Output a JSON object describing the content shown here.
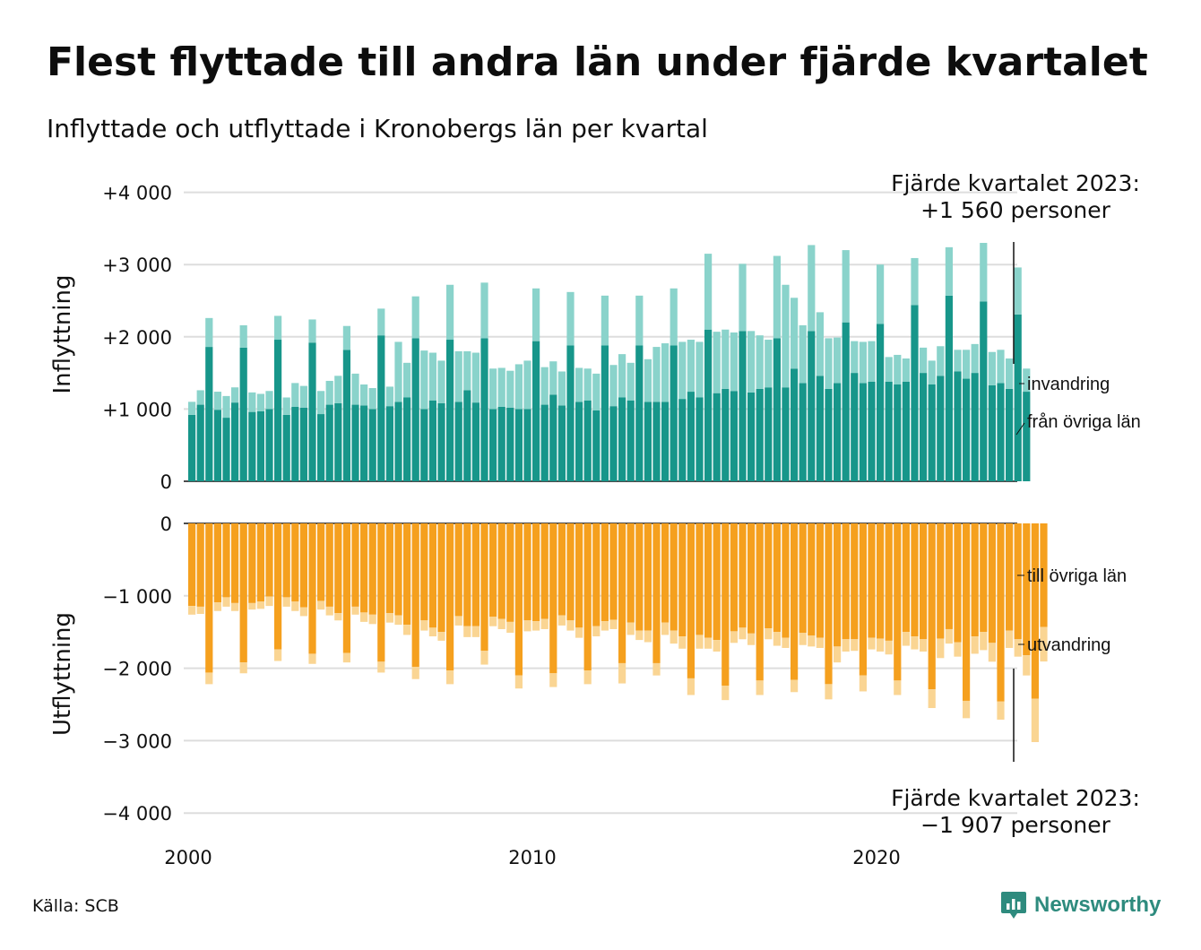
{
  "title": "Flest flyttade till andra län under fjärde kvartalet",
  "subtitle": "Inflyttade och utflyttade i Kronobergs län per kvartal",
  "source": "Källa: SCB",
  "brand": {
    "name": "Newsworthy",
    "icon": "chart-bubble-icon",
    "color": "#2e8b7e"
  },
  "chart_data": {
    "type": "bar",
    "stacked": true,
    "x_start": "2000 Q1",
    "x_ticks": [
      "2000",
      "2010",
      "2020"
    ],
    "colors": {
      "fran_ovriga_lan": "#17968a",
      "invandring": "#8ad3cb",
      "till_ovriga_lan": "#f5a01e",
      "utvandring": "#fad593"
    },
    "grid": true,
    "panels": [
      {
        "name": "inflyttning",
        "ylabel": "Inflyttning",
        "ylim": [
          0,
          4000
        ],
        "yticks": [
          {
            "value": 0,
            "label": "0"
          },
          {
            "value": 1000,
            "label": "+1 000"
          },
          {
            "value": 2000,
            "label": "+2 000"
          },
          {
            "value": 3000,
            "label": "+3 000"
          },
          {
            "value": 4000,
            "label": "+4 000"
          }
        ],
        "series": [
          {
            "name": "från övriga län",
            "values": [
              920,
              1060,
              1860,
              990,
              880,
              1090,
              1850,
              960,
              970,
              1000,
              1960,
              920,
              1030,
              1020,
              1920,
              930,
              1060,
              1080,
              1820,
              1060,
              1050,
              1000,
              2020,
              1040,
              1100,
              1160,
              1980,
              1000,
              1120,
              1080,
              1960,
              1100,
              1260,
              1090,
              1980,
              1000,
              1030,
              1020,
              1000,
              1000,
              1940,
              1060,
              1200,
              1050,
              1880,
              1100,
              1120,
              980,
              1880,
              1040,
              1160,
              1120,
              1880,
              1100,
              1100,
              1100,
              1880,
              1140,
              1240,
              1160,
              2100,
              1220,
              1280,
              1250,
              2080,
              1230,
              1280,
              1300,
              1980,
              1300,
              1560,
              1360,
              2080,
              1460,
              1280,
              1360,
              2200,
              1500,
              1360,
              1380,
              2180,
              1380,
              1340,
              1380,
              2440,
              1500,
              1340,
              1460,
              2570,
              1520,
              1420,
              1500,
              2490,
              1330,
              1360,
              1280,
              2310,
              1240
            ],
            "color": "#17968a"
          },
          {
            "name": "invandring",
            "values": [
              180,
              200,
              400,
              250,
              300,
              210,
              310,
              270,
              240,
              250,
              330,
              240,
              330,
              300,
              320,
              320,
              330,
              380,
              330,
              430,
              290,
              290,
              370,
              270,
              830,
              480,
              580,
              810,
              660,
              590,
              760,
              700,
              540,
              690,
              770,
              560,
              540,
              510,
              620,
              670,
              730,
              520,
              460,
              470,
              740,
              470,
              440,
              510,
              690,
              570,
              600,
              520,
              690,
              590,
              760,
              810,
              790,
              790,
              720,
              770,
              1050,
              850,
              820,
              810,
              930,
              850,
              740,
              660,
              1140,
              1420,
              980,
              800,
              1190,
              880,
              700,
              630,
              1000,
              440,
              570,
              560,
              820,
              340,
              410,
              320,
              650,
              350,
              330,
              410,
              670,
              300,
              400,
              400,
              810,
              460,
              460,
              420,
              650,
              320
            ],
            "color": "#8ad3cb"
          }
        ]
      },
      {
        "name": "utflyttning",
        "ylabel": "Utflyttning",
        "ylim": [
          -4000,
          0
        ],
        "yticks": [
          {
            "value": 0,
            "label": "0"
          },
          {
            "value": -1000,
            "label": "−1 000"
          },
          {
            "value": -2000,
            "label": "−2 000"
          },
          {
            "value": -3000,
            "label": "−3 000"
          },
          {
            "value": -4000,
            "label": "−4 000"
          }
        ],
        "series": [
          {
            "name": "till övriga län",
            "values": [
              -1140,
              -1150,
              -2060,
              -1090,
              -1020,
              -1100,
              -1920,
              -1100,
              -1080,
              -1010,
              -1740,
              -1020,
              -1080,
              -1160,
              -1800,
              -1070,
              -1150,
              -1240,
              -1790,
              -1150,
              -1230,
              -1260,
              -1910,
              -1240,
              -1270,
              -1400,
              -1980,
              -1340,
              -1440,
              -1500,
              -2030,
              -1280,
              -1420,
              -1420,
              -1760,
              -1290,
              -1320,
              -1360,
              -2100,
              -1340,
              -1350,
              -1320,
              -2070,
              -1270,
              -1340,
              -1440,
              -2030,
              -1420,
              -1350,
              -1330,
              -1930,
              -1370,
              -1480,
              -1480,
              -1930,
              -1370,
              -1480,
              -1560,
              -2140,
              -1540,
              -1580,
              -1610,
              -2240,
              -1490,
              -1440,
              -1520,
              -2170,
              -1450,
              -1500,
              -1580,
              -2160,
              -1510,
              -1550,
              -1580,
              -2220,
              -1700,
              -1600,
              -1600,
              -2100,
              -1580,
              -1590,
              -1620,
              -2170,
              -1500,
              -1560,
              -1600,
              -2290,
              -1590,
              -1460,
              -1640,
              -2450,
              -1560,
              -1500,
              -1650,
              -2460,
              -1480,
              -1600,
              -1820,
              -2420,
              -1430
            ],
            "color": "#f5a01e"
          },
          {
            "name": "utvandring",
            "values": [
              -120,
              -100,
              -160,
              -120,
              -130,
              -110,
              -150,
              -90,
              -100,
              -130,
              -160,
              -130,
              -130,
              -120,
              -140,
              -120,
              -120,
              -100,
              -130,
              -110,
              -130,
              -130,
              -150,
              -130,
              -130,
              -140,
              -170,
              -140,
              -120,
              -120,
              -190,
              -130,
              -150,
              -150,
              -190,
              -130,
              -140,
              -150,
              -180,
              -150,
              -130,
              -140,
              -190,
              -140,
              -140,
              -140,
              -190,
              -140,
              -130,
              -130,
              -280,
              -170,
              -130,
              -160,
              -170,
              -170,
              -180,
              -170,
              -230,
              -190,
              -150,
              -160,
              -200,
              -160,
              -160,
              -160,
              -200,
              -150,
              -190,
              -140,
              -170,
              -170,
              -150,
              -140,
              -210,
              -220,
              -170,
              -160,
              -220,
              -160,
              -180,
              -190,
              -200,
              -190,
              -180,
              -170,
              -260,
              -270,
              -200,
              -200,
              -240,
              -240,
              -250,
              -260,
              -250,
              -240,
              -240,
              -280,
              -600,
              -477
            ],
            "color": "#fad593"
          }
        ]
      }
    ],
    "annotations": {
      "top": [
        "Fjärde kvartalet 2023:",
        "+1 560 personer"
      ],
      "bottom": [
        "Fjärde kvartalet 2023:",
        "−1 907 personer"
      ]
    }
  }
}
